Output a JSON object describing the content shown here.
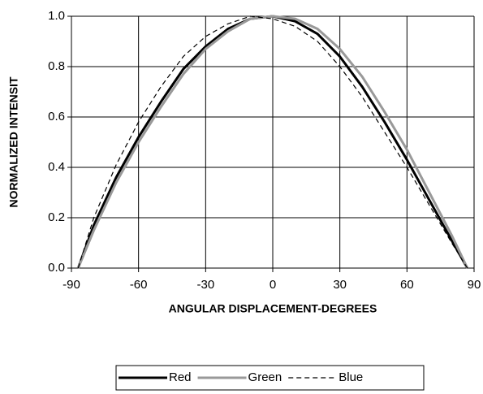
{
  "chart_data": {
    "type": "line",
    "xlabel": "ANGULAR DISPLACEMENT-DEGREES",
    "ylabel": "NORMALIZED INTENSIT",
    "x": [
      -87,
      -80,
      -70,
      -60,
      -50,
      -40,
      -30,
      -20,
      -10,
      0,
      10,
      20,
      30,
      40,
      50,
      60,
      70,
      80,
      87
    ],
    "series": [
      {
        "name": "Red",
        "color": "#000000",
        "dash": false,
        "values": [
          0,
          0.17,
          0.36,
          0.52,
          0.66,
          0.79,
          0.88,
          0.95,
          0.99,
          1.0,
          0.98,
          0.93,
          0.84,
          0.72,
          0.58,
          0.43,
          0.27,
          0.11,
          0
        ]
      },
      {
        "name": "Green",
        "color": "#999999",
        "dash": false,
        "values": [
          0,
          0.15,
          0.34,
          0.5,
          0.64,
          0.77,
          0.87,
          0.94,
          0.99,
          1.0,
          0.99,
          0.95,
          0.87,
          0.76,
          0.62,
          0.47,
          0.3,
          0.13,
          0
        ]
      },
      {
        "name": "Blue",
        "color": "#000000",
        "dash": true,
        "values": [
          0,
          0.2,
          0.41,
          0.58,
          0.72,
          0.84,
          0.92,
          0.97,
          1.0,
          0.99,
          0.96,
          0.9,
          0.8,
          0.68,
          0.54,
          0.4,
          0.25,
          0.1,
          0
        ]
      }
    ],
    "xlim": [
      -90,
      90
    ],
    "xticks": [
      -90,
      -60,
      -30,
      0,
      30,
      60,
      90
    ],
    "ylim": [
      0,
      1
    ],
    "yticks": [
      {
        "value": 0,
        "label": "0.0"
      },
      0.2,
      0.4,
      0.6,
      0.8,
      {
        "value": 1,
        "label": "1.0"
      }
    ],
    "grid": true,
    "legend": "bottom"
  }
}
